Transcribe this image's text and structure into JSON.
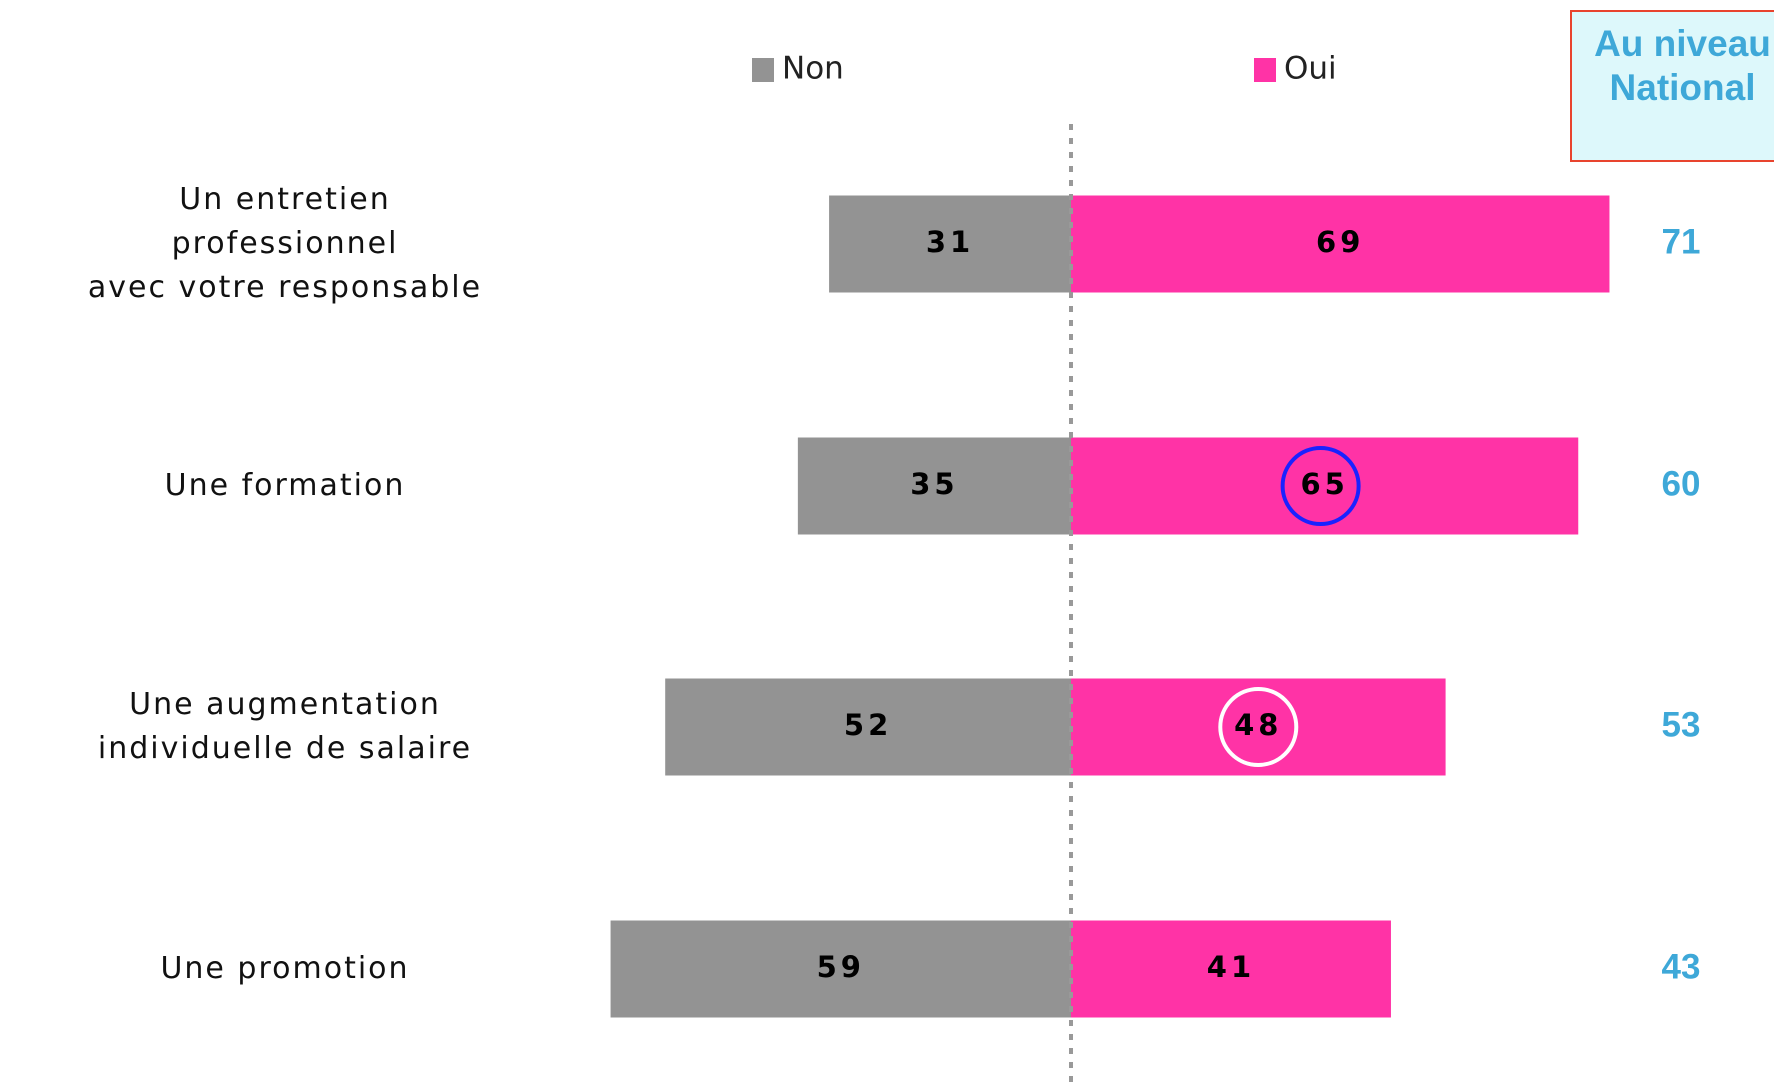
{
  "chart_data": {
    "type": "diverging-bar",
    "categories": [
      "Un entretien professionnel\navec votre responsable",
      "Une formation",
      "Une augmentation\nindividuelle de salaire",
      "Une promotion"
    ],
    "series": [
      {
        "name": "Non",
        "color": "#939393",
        "values": [
          31,
          35,
          52,
          59
        ]
      },
      {
        "name": "Oui",
        "color": "#ff33a6",
        "values": [
          69,
          65,
          48,
          41
        ]
      }
    ],
    "national": {
      "title": "Au niveau\nNational",
      "color": "#3ea8d8",
      "values": [
        71,
        60,
        53,
        43
      ]
    }
  }
}
